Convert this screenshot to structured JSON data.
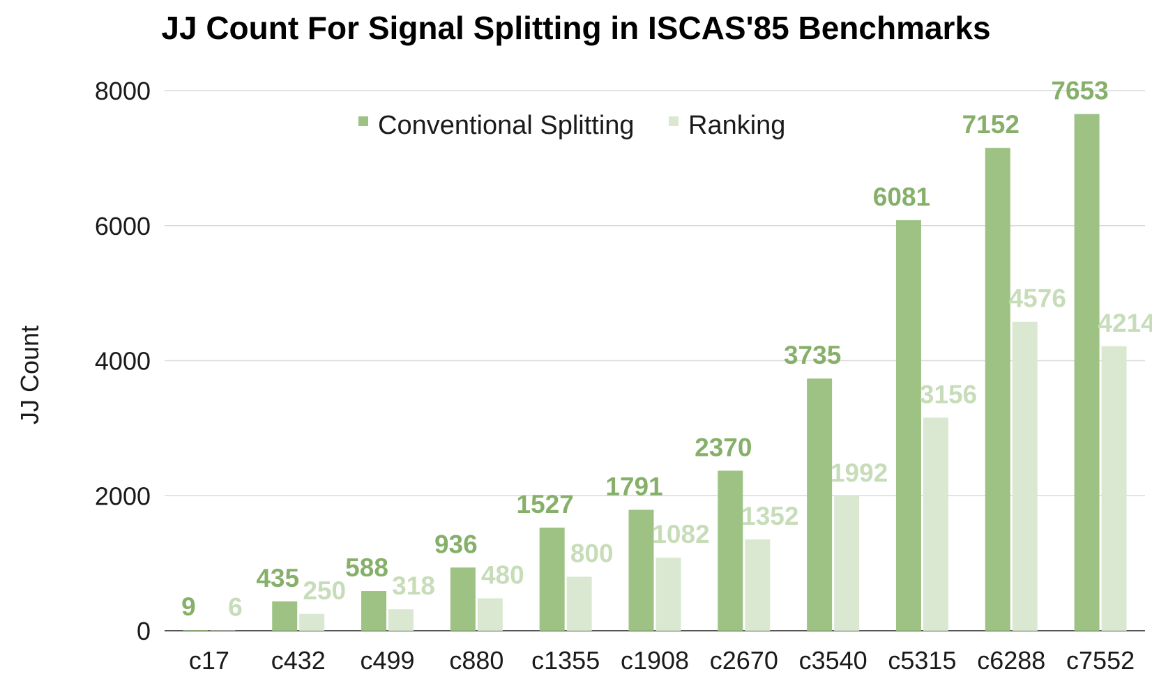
{
  "chart_data": {
    "type": "bar",
    "title": "JJ Count For Signal Splitting in ISCAS'85 Benchmarks",
    "xlabel": "",
    "ylabel": "JJ Count",
    "ylim": [
      0,
      8000
    ],
    "yticks": [
      "0",
      "2000",
      "4000",
      "6000",
      "8000"
    ],
    "grid": true,
    "legend_position": "top-center",
    "categories": [
      "c17",
      "c432",
      "c499",
      "c880",
      "c1355",
      "c1908",
      "c2670",
      "c3540",
      "c5315",
      "c6288",
      "c7552"
    ],
    "series": [
      {
        "name": "Conventional Splitting",
        "color": "#9dc283",
        "label_color": "#86b06a",
        "values": [
          9,
          435,
          588,
          936,
          1527,
          1791,
          2370,
          3735,
          6081,
          7152,
          7653
        ]
      },
      {
        "name": "Ranking",
        "color": "#dae8d2",
        "label_color": "#c7dcb9",
        "values": [
          6,
          250,
          318,
          480,
          800,
          1082,
          1352,
          1992,
          3156,
          4576,
          4214
        ]
      }
    ]
  }
}
